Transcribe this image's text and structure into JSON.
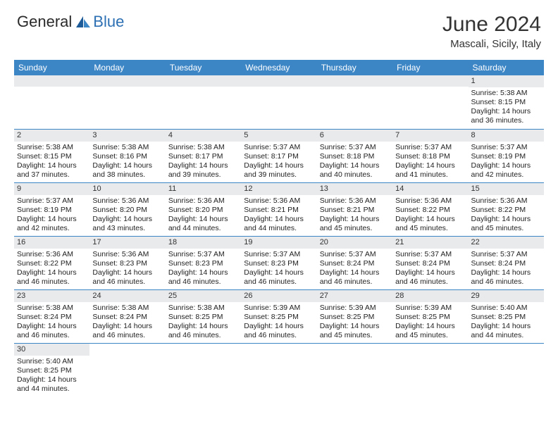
{
  "logo": {
    "text1": "General",
    "text2": "Blue"
  },
  "title": "June 2024",
  "location": "Mascali, Sicily, Italy",
  "colors": {
    "header_bg": "#3d86c6",
    "header_fg": "#ffffff",
    "daynum_bg": "#e9eaec",
    "border": "#3d86c6",
    "logo_blue": "#2d70b3"
  },
  "weekdays": [
    "Sunday",
    "Monday",
    "Tuesday",
    "Wednesday",
    "Thursday",
    "Friday",
    "Saturday"
  ],
  "days": {
    "1": {
      "sr": "5:38 AM",
      "ss": "8:15 PM",
      "dl": "14 hours and 36 minutes."
    },
    "2": {
      "sr": "5:38 AM",
      "ss": "8:15 PM",
      "dl": "14 hours and 37 minutes."
    },
    "3": {
      "sr": "5:38 AM",
      "ss": "8:16 PM",
      "dl": "14 hours and 38 minutes."
    },
    "4": {
      "sr": "5:38 AM",
      "ss": "8:17 PM",
      "dl": "14 hours and 39 minutes."
    },
    "5": {
      "sr": "5:37 AM",
      "ss": "8:17 PM",
      "dl": "14 hours and 39 minutes."
    },
    "6": {
      "sr": "5:37 AM",
      "ss": "8:18 PM",
      "dl": "14 hours and 40 minutes."
    },
    "7": {
      "sr": "5:37 AM",
      "ss": "8:18 PM",
      "dl": "14 hours and 41 minutes."
    },
    "8": {
      "sr": "5:37 AM",
      "ss": "8:19 PM",
      "dl": "14 hours and 42 minutes."
    },
    "9": {
      "sr": "5:37 AM",
      "ss": "8:19 PM",
      "dl": "14 hours and 42 minutes."
    },
    "10": {
      "sr": "5:36 AM",
      "ss": "8:20 PM",
      "dl": "14 hours and 43 minutes."
    },
    "11": {
      "sr": "5:36 AM",
      "ss": "8:20 PM",
      "dl": "14 hours and 44 minutes."
    },
    "12": {
      "sr": "5:36 AM",
      "ss": "8:21 PM",
      "dl": "14 hours and 44 minutes."
    },
    "13": {
      "sr": "5:36 AM",
      "ss": "8:21 PM",
      "dl": "14 hours and 45 minutes."
    },
    "14": {
      "sr": "5:36 AM",
      "ss": "8:22 PM",
      "dl": "14 hours and 45 minutes."
    },
    "15": {
      "sr": "5:36 AM",
      "ss": "8:22 PM",
      "dl": "14 hours and 45 minutes."
    },
    "16": {
      "sr": "5:36 AM",
      "ss": "8:22 PM",
      "dl": "14 hours and 46 minutes."
    },
    "17": {
      "sr": "5:36 AM",
      "ss": "8:23 PM",
      "dl": "14 hours and 46 minutes."
    },
    "18": {
      "sr": "5:37 AM",
      "ss": "8:23 PM",
      "dl": "14 hours and 46 minutes."
    },
    "19": {
      "sr": "5:37 AM",
      "ss": "8:23 PM",
      "dl": "14 hours and 46 minutes."
    },
    "20": {
      "sr": "5:37 AM",
      "ss": "8:24 PM",
      "dl": "14 hours and 46 minutes."
    },
    "21": {
      "sr": "5:37 AM",
      "ss": "8:24 PM",
      "dl": "14 hours and 46 minutes."
    },
    "22": {
      "sr": "5:37 AM",
      "ss": "8:24 PM",
      "dl": "14 hours and 46 minutes."
    },
    "23": {
      "sr": "5:38 AM",
      "ss": "8:24 PM",
      "dl": "14 hours and 46 minutes."
    },
    "24": {
      "sr": "5:38 AM",
      "ss": "8:24 PM",
      "dl": "14 hours and 46 minutes."
    },
    "25": {
      "sr": "5:38 AM",
      "ss": "8:25 PM",
      "dl": "14 hours and 46 minutes."
    },
    "26": {
      "sr": "5:39 AM",
      "ss": "8:25 PM",
      "dl": "14 hours and 46 minutes."
    },
    "27": {
      "sr": "5:39 AM",
      "ss": "8:25 PM",
      "dl": "14 hours and 45 minutes."
    },
    "28": {
      "sr": "5:39 AM",
      "ss": "8:25 PM",
      "dl": "14 hours and 45 minutes."
    },
    "29": {
      "sr": "5:40 AM",
      "ss": "8:25 PM",
      "dl": "14 hours and 44 minutes."
    },
    "30": {
      "sr": "5:40 AM",
      "ss": "8:25 PM",
      "dl": "14 hours and 44 minutes."
    }
  },
  "labels": {
    "sunrise": "Sunrise: ",
    "sunset": "Sunset: ",
    "daylight": "Daylight: "
  },
  "grid": [
    [
      null,
      null,
      null,
      null,
      null,
      null,
      "1"
    ],
    [
      "2",
      "3",
      "4",
      "5",
      "6",
      "7",
      "8"
    ],
    [
      "9",
      "10",
      "11",
      "12",
      "13",
      "14",
      "15"
    ],
    [
      "16",
      "17",
      "18",
      "19",
      "20",
      "21",
      "22"
    ],
    [
      "23",
      "24",
      "25",
      "26",
      "27",
      "28",
      "29"
    ],
    [
      "30",
      null,
      null,
      null,
      null,
      null,
      null
    ]
  ]
}
